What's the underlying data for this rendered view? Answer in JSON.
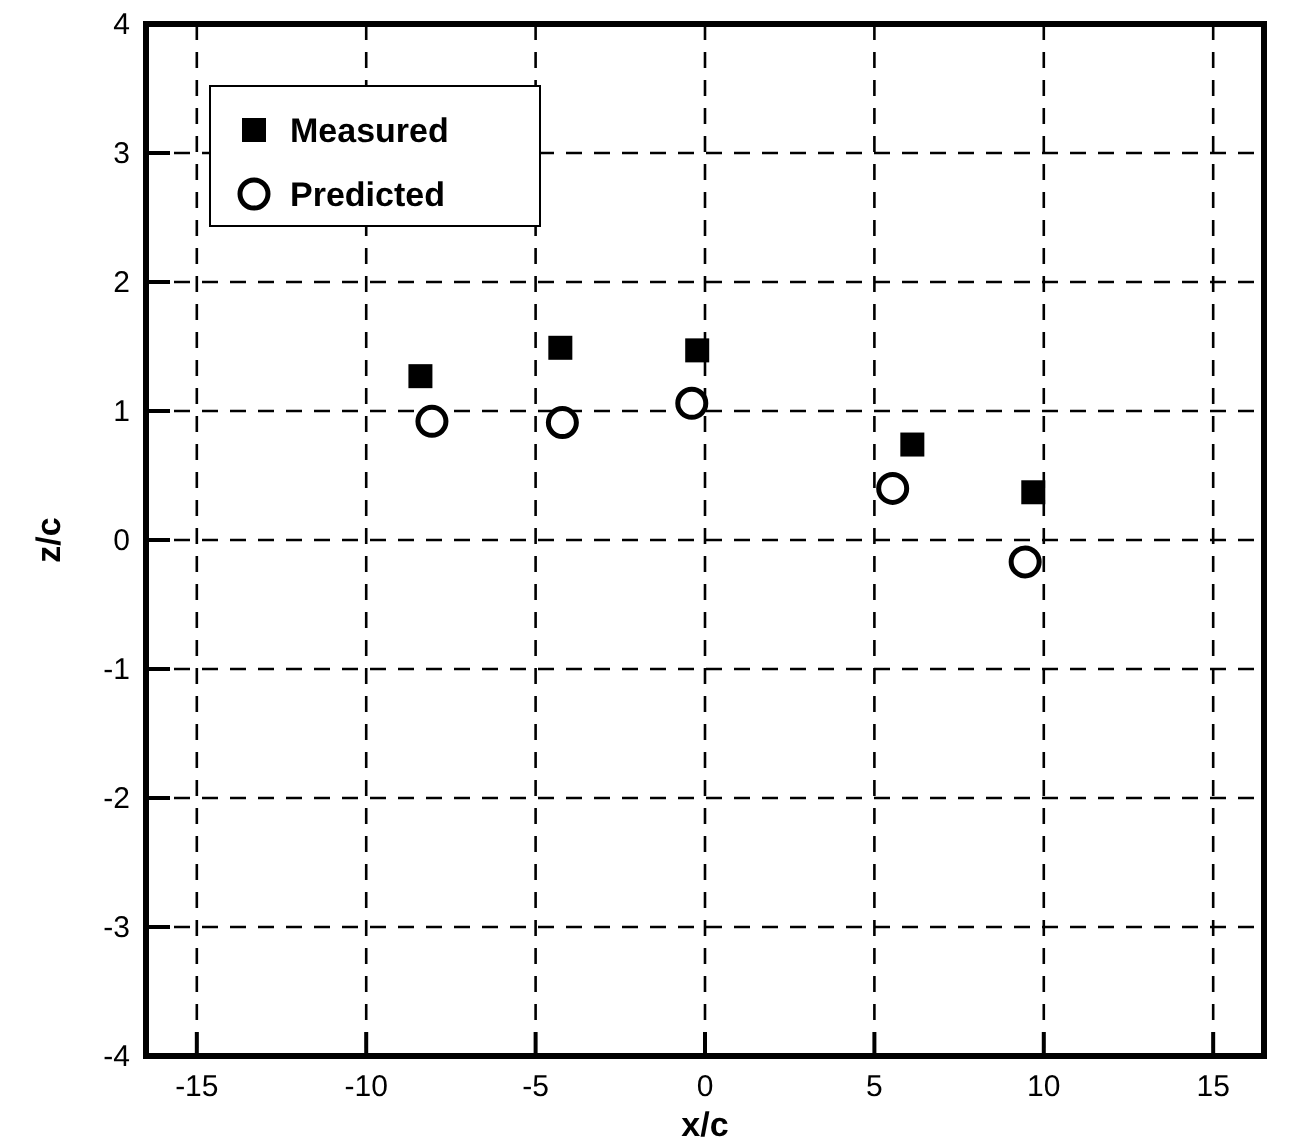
{
  "chart_data": {
    "type": "scatter",
    "xlabel": "x/c",
    "ylabel": "z/c",
    "xlim": [
      -16.5,
      16.5
    ],
    "xticks": [
      -15,
      -10,
      -5,
      0,
      5,
      10,
      15
    ],
    "ylim": [
      -4,
      4
    ],
    "yticks": [
      -4,
      -3,
      -2,
      -1,
      0,
      1,
      2,
      3,
      4
    ],
    "grid": true,
    "line_style": "dashed",
    "legend": "top left",
    "series": [
      {
        "name": "Measured",
        "color": "#000000",
        "marker": "square",
        "x": [
          -8.4,
          -4.27,
          -0.23,
          6.12,
          9.69
        ],
        "values": [
          1.27,
          1.49,
          1.47,
          0.74,
          0.37
        ]
      },
      {
        "name": "Predicted",
        "color": "#000000",
        "marker": "circle",
        "x": [
          -8.06,
          -4.21,
          -0.39,
          5.54,
          9.45
        ],
        "values": [
          0.92,
          0.91,
          1.06,
          0.4,
          -0.17
        ]
      }
    ]
  }
}
